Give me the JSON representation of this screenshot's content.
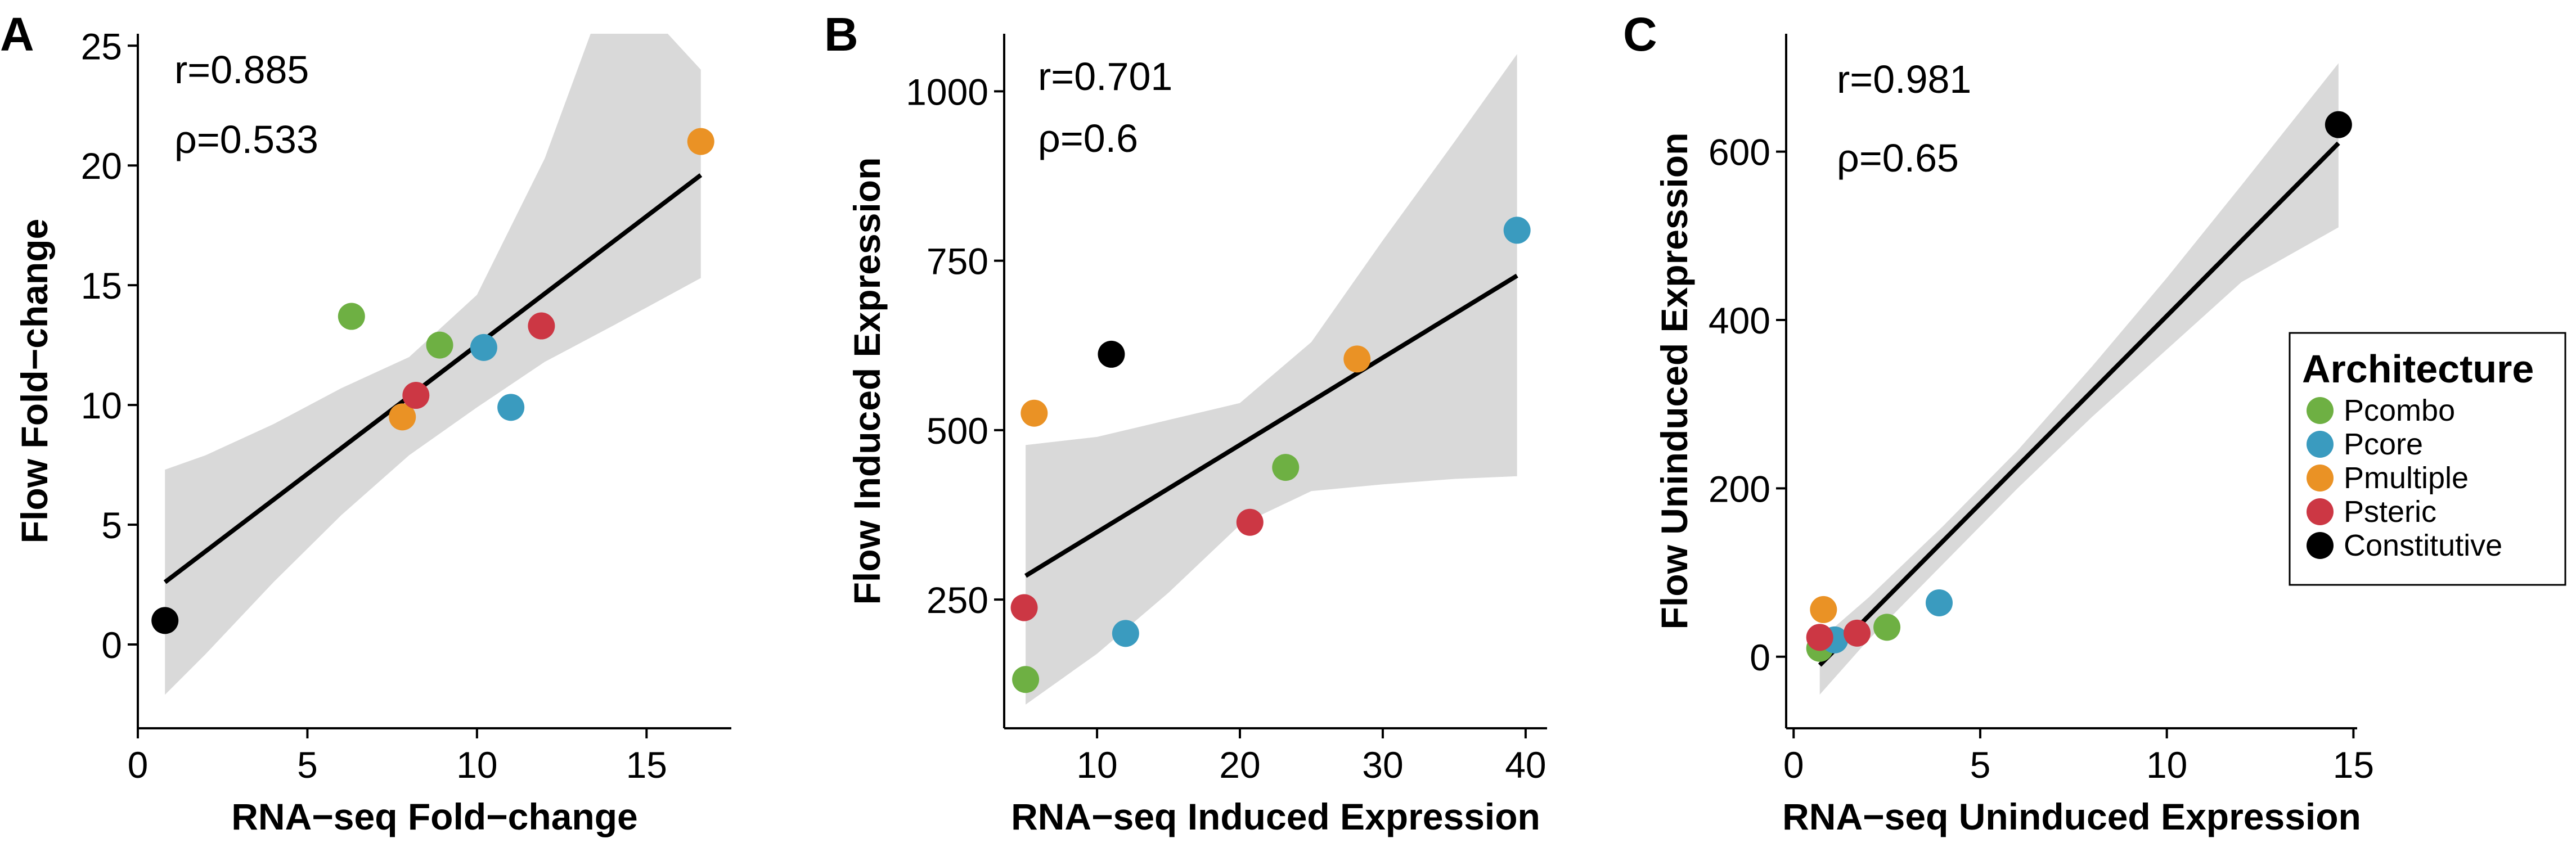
{
  "chart_data": [
    {
      "panel_label": "A",
      "type": "scatter",
      "xlabel": "RNA−seq Fold−change",
      "ylabel": "Flow Fold−change",
      "xlim": [
        0,
        17.5
      ],
      "ylim": [
        -3.5,
        25.5
      ],
      "xticks": [
        0,
        5,
        10,
        15
      ],
      "yticks": [
        0,
        5,
        10,
        15,
        20,
        25
      ],
      "stats": [
        "r=0.885",
        "ρ=0.533"
      ],
      "points": [
        {
          "x": 0.8,
          "y": 1.0,
          "group": "Constitutive"
        },
        {
          "x": 6.3,
          "y": 13.7,
          "group": "Pcombo"
        },
        {
          "x": 8.9,
          "y": 12.5,
          "group": "Pcombo"
        },
        {
          "x": 7.8,
          "y": 9.5,
          "group": "Pmultiple"
        },
        {
          "x": 8.2,
          "y": 10.4,
          "group": "Psteric"
        },
        {
          "x": 10.2,
          "y": 12.4,
          "group": "Pcore"
        },
        {
          "x": 11.0,
          "y": 9.9,
          "group": "Pcore"
        },
        {
          "x": 11.9,
          "y": 13.3,
          "group": "Psteric"
        },
        {
          "x": 16.6,
          "y": 21.0,
          "group": "Pmultiple"
        }
      ],
      "fit": {
        "x": [
          0.8,
          16.6
        ],
        "y": [
          2.6,
          19.6
        ]
      },
      "band": {
        "x": [
          0.8,
          2.0,
          4.0,
          6.0,
          8.0,
          10.0,
          12.0,
          14.0,
          16.6
        ],
        "lower": [
          -2.1,
          -0.4,
          2.6,
          5.4,
          7.9,
          9.9,
          11.8,
          13.3,
          15.3
        ],
        "upper": [
          7.3,
          7.9,
          9.2,
          10.7,
          12.0,
          14.6,
          20.3,
          28.0,
          24.0
        ]
      }
    },
    {
      "panel_label": "B",
      "type": "scatter",
      "xlabel": "RNA−seq Induced Expression",
      "ylabel": "Flow Induced Expression",
      "xlim": [
        3.5,
        41.5
      ],
      "ylim": [
        60,
        1085
      ],
      "xticks": [
        10,
        20,
        30,
        40
      ],
      "yticks": [
        250,
        500,
        750,
        1000
      ],
      "stats": [
        "r=0.701",
        "ρ=0.6"
      ],
      "points": [
        {
          "x": 5.0,
          "y": 132,
          "group": "Pcombo"
        },
        {
          "x": 4.9,
          "y": 238,
          "group": "Psteric"
        },
        {
          "x": 5.6,
          "y": 525,
          "group": "Pmultiple"
        },
        {
          "x": 11.0,
          "y": 612,
          "group": "Constitutive"
        },
        {
          "x": 12.0,
          "y": 200,
          "group": "Pcore"
        },
        {
          "x": 20.7,
          "y": 364,
          "group": "Psteric"
        },
        {
          "x": 23.2,
          "y": 445,
          "group": "Pcombo"
        },
        {
          "x": 28.2,
          "y": 605,
          "group": "Pmultiple"
        },
        {
          "x": 39.4,
          "y": 795,
          "group": "Pcore"
        }
      ],
      "fit": {
        "x": [
          5.0,
          39.4
        ],
        "y": [
          285,
          728
        ]
      },
      "band": {
        "x": [
          5.0,
          10.0,
          15.0,
          20.0,
          25.0,
          30.0,
          35.0,
          39.4
        ],
        "lower": [
          95,
          170,
          260,
          360,
          410,
          420,
          428,
          432
        ],
        "upper": [
          478,
          490,
          515,
          540,
          630,
          780,
          925,
          1055
        ]
      }
    },
    {
      "panel_label": "C",
      "type": "scatter",
      "xlabel": "RNA−seq Uninduced Expression",
      "ylabel": "Flow Uninduced Expression",
      "xlim": [
        -0.2,
        15.1
      ],
      "ylim": [
        -85,
        740
      ],
      "xticks": [
        0,
        5,
        10,
        15
      ],
      "yticks": [
        0,
        200,
        400,
        600
      ],
      "stats": [
        "r=0.981",
        "ρ=0.65"
      ],
      "points": [
        {
          "x": 0.7,
          "y": 10,
          "group": "Pcombo"
        },
        {
          "x": 1.1,
          "y": 20,
          "group": "Pcore"
        },
        {
          "x": 0.7,
          "y": 23,
          "group": "Psteric"
        },
        {
          "x": 1.7,
          "y": 28,
          "group": "Psteric"
        },
        {
          "x": 0.8,
          "y": 56,
          "group": "Pmultiple"
        },
        {
          "x": 2.5,
          "y": 35,
          "group": "Pcombo"
        },
        {
          "x": 3.9,
          "y": 64,
          "group": "Pcore"
        },
        {
          "x": 14.6,
          "y": 632,
          "group": "Constitutive"
        }
      ],
      "fit": {
        "x": [
          0.7,
          14.6
        ],
        "y": [
          -10,
          610
        ]
      },
      "band": {
        "x": [
          0.7,
          2.0,
          4.0,
          6.0,
          8.0,
          10.0,
          12.0,
          14.6
        ],
        "lower": [
          -45,
          20,
          110,
          200,
          285,
          365,
          445,
          510
        ],
        "upper": [
          20,
          70,
          155,
          245,
          345,
          450,
          560,
          705
        ]
      }
    }
  ],
  "legend": {
    "title": "Architecture",
    "items": [
      {
        "label": "Pcombo",
        "color": "#6eb043"
      },
      {
        "label": "Pcore",
        "color": "#3a9bbf"
      },
      {
        "label": "Pmultiple",
        "color": "#ea9225"
      },
      {
        "label": "Psteric",
        "color": "#cc3744"
      },
      {
        "label": "Constitutive",
        "color": "#000000"
      }
    ]
  },
  "colors": {
    "Pcombo": "#6eb043",
    "Pcore": "#3a9bbf",
    "Pmultiple": "#ea9225",
    "Psteric": "#cc3744",
    "Constitutive": "#000000",
    "band": "#d9d9d9"
  }
}
